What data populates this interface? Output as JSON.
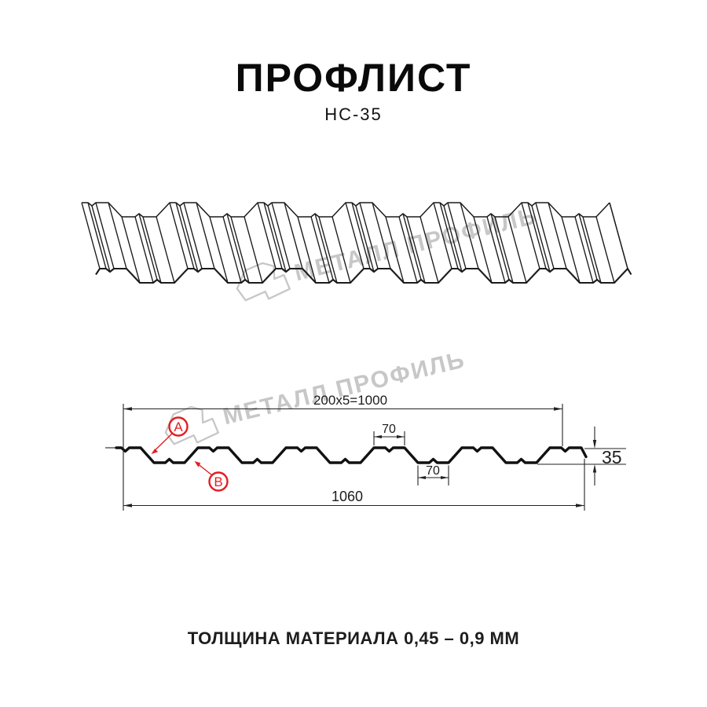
{
  "title": "ПРОФЛИСТ",
  "subtitle": "НС-35",
  "footer_note": "ТОЛЩИНА МАТЕРИАЛА 0,45 – 0,9 ММ",
  "watermark": {
    "brand": "МЕТАЛЛ ПРОФИЛЬ"
  },
  "diagram": {
    "dimensions": {
      "coverage_width": "200x5=1000",
      "rib_top_width": "70",
      "rib_bottom_width": "70",
      "profile_height": "35",
      "overall_width": "1060"
    },
    "values": {
      "coverage_mm": 1000,
      "rib_pitch_mm": 200,
      "ribs": 5,
      "rib_width_mm": 70,
      "height_mm": 35,
      "overall_mm": 1060
    },
    "callouts": {
      "a": "А",
      "b": "В"
    }
  },
  "colors": {
    "accent_red": "#e31e24",
    "line": "#1c1c1c",
    "watermark": "#c7c7c7"
  }
}
